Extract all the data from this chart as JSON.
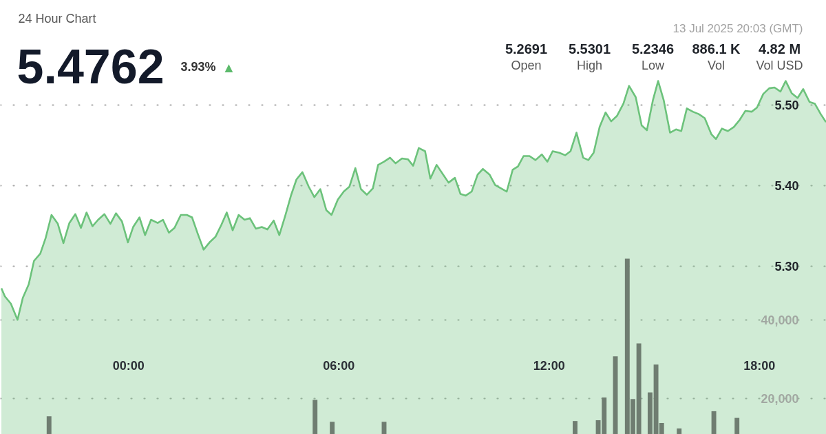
{
  "chart_data": {
    "type": "area",
    "subtitle": "24 Hour Chart",
    "annotations": [
      "5.4762",
      "3.93%",
      "▲",
      "13 Jul 2025 20:03 (GMT)",
      "5.2691",
      "Open",
      "5.5301",
      "High",
      "5.2346",
      "Low",
      "886.1 K",
      "Vol",
      "4.82 M",
      "Vol USD"
    ],
    "series": [
      {
        "color": "#6cc27b",
        "x": [
          -3.63,
          -3.53,
          -3.36,
          -3.17,
          -3.02,
          -2.85,
          -2.7,
          -2.52,
          -2.37,
          -2.2,
          -2.02,
          -1.86,
          -1.69,
          -1.52,
          -1.36,
          -1.2,
          -1.03,
          -0.87,
          -0.69,
          -0.52,
          -0.36,
          -0.19,
          -0.02,
          0.13,
          0.31,
          0.47,
          0.64,
          0.83,
          0.98,
          1.15,
          1.31,
          1.49,
          1.66,
          1.81,
          1.97,
          2.14,
          2.31,
          2.48,
          2.65,
          2.8,
          2.97,
          3.14,
          3.31,
          3.46,
          3.63,
          3.8,
          3.96,
          4.14,
          4.3,
          4.47,
          4.64,
          4.79,
          4.96,
          5.14,
          5.3,
          5.47,
          5.64,
          5.79,
          5.97,
          6.14,
          6.3,
          6.47,
          6.63,
          6.8,
          6.97,
          7.12,
          7.29,
          7.46,
          7.62,
          7.8,
          7.97,
          8.12,
          8.28,
          8.46,
          8.61,
          8.79,
          9.13,
          9.31,
          9.47,
          9.62,
          9.79,
          9.96,
          10.11,
          10.3,
          10.46,
          10.79,
          10.96,
          11.11,
          11.27,
          11.44,
          11.61,
          11.79,
          11.95,
          12.1,
          12.29,
          12.46,
          12.61,
          12.78,
          12.97,
          13.12,
          13.27,
          13.44,
          13.61,
          13.77,
          13.94,
          14.12,
          14.28,
          14.47,
          14.64,
          14.79,
          14.96,
          15.11,
          15.27,
          15.45,
          15.62,
          15.77,
          15.93,
          16.1,
          16.27,
          16.44,
          16.63,
          16.76,
          16.93,
          17.1,
          17.27,
          17.44,
          17.6,
          17.78,
          17.93,
          18.11,
          18.28,
          18.43,
          18.6,
          18.75,
          18.92,
          19.09,
          19.25,
          19.43,
          19.58,
          19.75,
          19.9
        ],
        "values": [
          5.273,
          5.263,
          5.254,
          5.234,
          5.261,
          5.278,
          5.307,
          5.316,
          5.335,
          5.364,
          5.353,
          5.329,
          5.354,
          5.365,
          5.348,
          5.367,
          5.35,
          5.358,
          5.365,
          5.353,
          5.366,
          5.356,
          5.33,
          5.349,
          5.361,
          5.339,
          5.358,
          5.354,
          5.358,
          5.342,
          5.348,
          5.364,
          5.364,
          5.361,
          5.341,
          5.321,
          5.33,
          5.337,
          5.352,
          5.367,
          5.345,
          5.364,
          5.358,
          5.36,
          5.347,
          5.349,
          5.346,
          5.357,
          5.339,
          5.363,
          5.389,
          5.408,
          5.417,
          5.399,
          5.386,
          5.396,
          5.37,
          5.364,
          5.383,
          5.393,
          5.399,
          5.422,
          5.396,
          5.389,
          5.397,
          5.426,
          5.43,
          5.435,
          5.428,
          5.434,
          5.433,
          5.425,
          5.447,
          5.443,
          5.409,
          5.426,
          5.404,
          5.41,
          5.39,
          5.388,
          5.393,
          5.414,
          5.421,
          5.414,
          5.401,
          5.393,
          5.42,
          5.424,
          5.437,
          5.437,
          5.432,
          5.439,
          5.43,
          5.443,
          5.441,
          5.438,
          5.443,
          5.466,
          5.435,
          5.432,
          5.441,
          5.473,
          5.491,
          5.48,
          5.487,
          5.502,
          5.524,
          5.51,
          5.475,
          5.469,
          5.506,
          5.53,
          5.506,
          5.466,
          5.47,
          5.468,
          5.496,
          5.492,
          5.489,
          5.484,
          5.464,
          5.458,
          5.471,
          5.468,
          5.473,
          5.482,
          5.493,
          5.492,
          5.497,
          5.514,
          5.521,
          5.522,
          5.517,
          5.53,
          5.515,
          5.509,
          5.52,
          5.504,
          5.502,
          5.489,
          5.479
        ]
      },
      {
        "type": "bar",
        "axis": "y2",
        "color": "#6f7d71",
        "x": [
          -2.27,
          5.32,
          5.81,
          7.29,
          12.74,
          13.4,
          13.57,
          13.89,
          14.23,
          14.39,
          14.56,
          14.88,
          15.05,
          15.21,
          15.71,
          16.7,
          17.36
        ],
        "values": [
          15500,
          19700,
          14100,
          14100,
          14300,
          14500,
          20300,
          30800,
          55700,
          19900,
          34100,
          21600,
          28700,
          13800,
          12400,
          16800,
          15100
        ]
      }
    ],
    "xlim": [
      -3.66,
      19.91
    ],
    "xticks": [
      {
        "value": 0,
        "label": "00:00"
      },
      {
        "value": 6,
        "label": "06:00"
      },
      {
        "value": 12,
        "label": "12:00"
      },
      {
        "value": 18,
        "label": "18:00"
      }
    ],
    "ylim": [
      5.092,
      5.63
    ],
    "yticks": [
      {
        "value": 5.3,
        "label": "5.30"
      },
      {
        "value": 5.4,
        "label": "5.40"
      },
      {
        "value": 5.5,
        "label": "5.50"
      }
    ],
    "y2lim": [
      10900,
      121600
    ],
    "y2ticks": [
      {
        "value": 20000,
        "label": "20,000"
      },
      {
        "value": 40000,
        "label": "40,000"
      }
    ],
    "grid": "y"
  }
}
